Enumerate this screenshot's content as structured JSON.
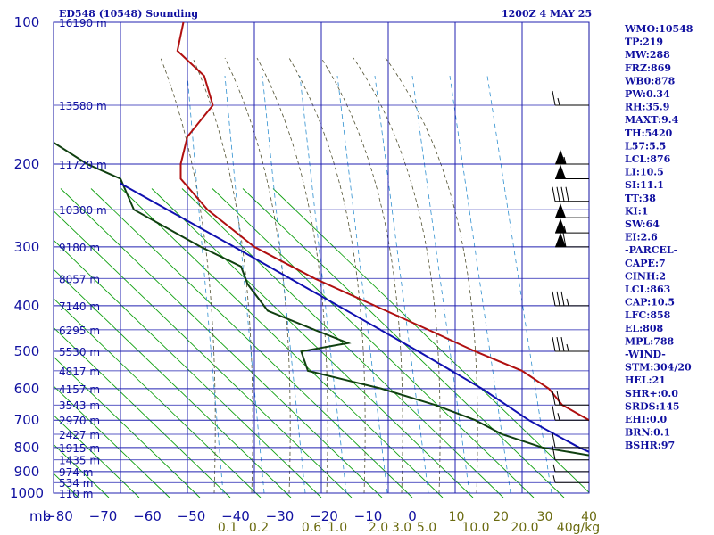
{
  "header": {
    "station": "ED548 (10548) Sounding",
    "time": "1200Z  4 MAY 25"
  },
  "indices": [
    "WMO:10548",
    "TP:219",
    "MW:288",
    "FRZ:869",
    "WB0:878",
    "PW:0.34",
    "RH:35.9",
    "MAXT:9.4",
    "TH:5420",
    "L57:5.5",
    "LCL:876",
    "LI:10.5",
    "SI:11.1",
    "TT:38",
    "KI:1",
    "SW:64",
    "EI:2.6",
    "-PARCEL-",
    "CAPE:7",
    "CINH:2",
    "LCL:863",
    "CAP:10.5",
    "LFC:858",
    "EL:808",
    "MPL:788",
    "-WIND-",
    "STM:304/20",
    "HEL:21",
    "SHR+:0.0",
    "SRDS:145",
    "EHI:0.0",
    "BRN:0.1",
    "BSHR:97"
  ],
  "chart_data": {
    "type": "line",
    "title": "ED548 (10548) Sounding",
    "subtitle": "1200Z  4 MAY 25",
    "xlabel": "",
    "ylabel": "mb",
    "x_unit": "°C",
    "xlim": [
      -80,
      0
    ],
    "ylim": [
      1000,
      100
    ],
    "y_scale": "log",
    "pressure_ticks": [
      100,
      200,
      300,
      400,
      500,
      600,
      700,
      800,
      900,
      1000
    ],
    "temp_ticks": [
      -80,
      -70,
      -60,
      -50,
      -40,
      -30,
      -20,
      -10,
      0,
      10,
      20,
      30,
      40
    ],
    "mixing_ratio_labels": [
      "0.1",
      "0.2",
      "0.6",
      "1.0",
      "2.0",
      "3.0",
      "5.0",
      "10.0",
      "20.0",
      "40g/kg"
    ],
    "height_labels": [
      {
        "p": 100,
        "label": "16190 m"
      },
      {
        "p": 150,
        "label": "13580 m"
      },
      {
        "p": 200,
        "label": "11720 m"
      },
      {
        "p": 250,
        "label": "10300 m"
      },
      {
        "p": 300,
        "label": "9180 m"
      },
      {
        "p": 350,
        "label": "8057 m"
      },
      {
        "p": 400,
        "label": "7140 m"
      },
      {
        "p": 450,
        "label": "6295 m"
      },
      {
        "p": 500,
        "label": "5530 m"
      },
      {
        "p": 550,
        "label": "4817 m"
      },
      {
        "p": 600,
        "label": "4157 m"
      },
      {
        "p": 650,
        "label": "3543 m"
      },
      {
        "p": 700,
        "label": "2970 m"
      },
      {
        "p": 750,
        "label": "2427 m"
      },
      {
        "p": 800,
        "label": "1915 m"
      },
      {
        "p": 850,
        "label": "1435 m"
      },
      {
        "p": 900,
        "label": "974 m"
      },
      {
        "p": 950,
        "label": "534 m"
      },
      {
        "p": 1000,
        "label": "110 m"
      }
    ],
    "series": [
      {
        "key": "temperature",
        "color": "#b01010",
        "points": [
          [
            100,
            -60.6
          ],
          [
            115,
            -61.5
          ],
          [
            130,
            -57.5
          ],
          [
            150,
            -56.2
          ],
          [
            175,
            -60.0
          ],
          [
            200,
            -61.0
          ],
          [
            215,
            -61.0
          ],
          [
            250,
            -57.0
          ],
          [
            300,
            -50.0
          ],
          [
            350,
            -41.0
          ],
          [
            400,
            -32.0
          ],
          [
            450,
            -24.0
          ],
          [
            500,
            -17.0
          ],
          [
            550,
            -10.0
          ],
          [
            600,
            -6.0
          ],
          [
            650,
            -4.0
          ],
          [
            700,
            0.0
          ],
          [
            750,
            4.0
          ],
          [
            790,
            7.5
          ],
          [
            810,
            6.5
          ],
          [
            850,
            7.0
          ],
          [
            900,
            9.0
          ],
          [
            960,
            11.0
          ]
        ]
      },
      {
        "key": "dewpoint",
        "color": "#104010",
        "points": [
          [
            180,
            -80.0
          ],
          [
            200,
            -75.0
          ],
          [
            215,
            -70.0
          ],
          [
            250,
            -68.0
          ],
          [
            300,
            -58.0
          ],
          [
            330,
            -52.0
          ],
          [
            360,
            -51.0
          ],
          [
            410,
            -48.0
          ],
          [
            450,
            -41.0
          ],
          [
            480,
            -36.0
          ],
          [
            500,
            -43.0
          ],
          [
            550,
            -42.0
          ],
          [
            600,
            -31.0
          ],
          [
            650,
            -23.0
          ],
          [
            700,
            -17.0
          ],
          [
            750,
            -13.0
          ],
          [
            800,
            -7.0
          ],
          [
            850,
            4.0
          ],
          [
            900,
            5.5
          ],
          [
            960,
            6.0
          ]
        ]
      },
      {
        "key": "parcel",
        "color": "#1010b0",
        "points": [
          [
            960,
            11.0
          ],
          [
            876,
            4.8
          ],
          [
            800,
            -1.5
          ],
          [
            700,
            -9.0
          ],
          [
            600,
            -16.0
          ],
          [
            500,
            -25.5
          ],
          [
            400,
            -37.5
          ],
          [
            300,
            -53.0
          ],
          [
            250,
            -63.0
          ],
          [
            220,
            -70.0
          ]
        ]
      }
    ],
    "wind_barbs": [
      {
        "p": 150,
        "kt": 15
      },
      {
        "p": 200,
        "kt": 55
      },
      {
        "p": 215,
        "kt": 50
      },
      {
        "p": 240,
        "kt": 40
      },
      {
        "p": 260,
        "kt": 50
      },
      {
        "p": 280,
        "kt": 55
      },
      {
        "p": 300,
        "kt": 60
      },
      {
        "p": 400,
        "kt": 35
      },
      {
        "p": 500,
        "kt": 35
      },
      {
        "p": 650,
        "kt": 20
      },
      {
        "p": 700,
        "kt": 15
      },
      {
        "p": 800,
        "kt": 10
      },
      {
        "p": 850,
        "kt": 10
      },
      {
        "p": 900,
        "kt": 5
      },
      {
        "p": 950,
        "kt": 5
      }
    ],
    "colors": {
      "frame": "#1010a0",
      "isotherm": "#2020b0",
      "dry_adiabat": "#10a010",
      "moist_adiabat": "#505030",
      "mixing_ratio": "#3090d0",
      "barb": "#000000"
    }
  }
}
